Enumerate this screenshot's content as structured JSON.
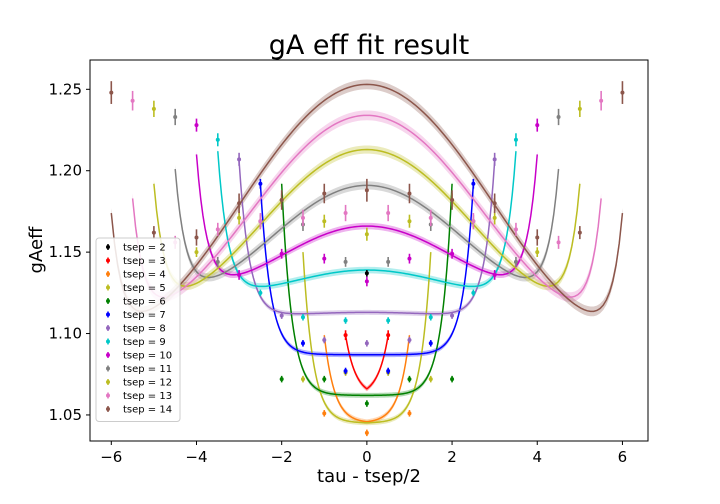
{
  "chart_data": {
    "type": "scatter",
    "title": "gA eff fit result",
    "xlabel": "tau - tsep/2",
    "ylabel": "gAeff",
    "xlim": [
      -6.5,
      6.6
    ],
    "ylim": [
      1.034,
      1.268
    ],
    "xticks": [
      -6,
      -4,
      -2,
      0,
      2,
      4,
      6
    ],
    "xtick_labels": [
      "−6",
      "−4",
      "−2",
      "0",
      "2",
      "4",
      "6"
    ],
    "yticks": [
      1.05,
      1.1,
      1.15,
      1.2,
      1.25
    ],
    "ytick_labels": [
      "1.05",
      "1.10",
      "1.15",
      "1.20",
      "1.25"
    ],
    "legend_position": "lower-left",
    "series": [
      {
        "name": "tsep = 2",
        "tsep": 2,
        "color": "#000000",
        "points": [
          {
            "x": 0,
            "y": 1.137,
            "err": 0.002
          }
        ]
      },
      {
        "name": "tsep = 3",
        "tsep": 3,
        "color": "#ff0000",
        "points": [
          {
            "x": -0.5,
            "y": 1.099,
            "err": 0.003
          },
          {
            "x": 0.5,
            "y": 1.099,
            "err": 0.003
          }
        ]
      },
      {
        "name": "tsep = 4",
        "tsep": 4,
        "color": "#ff7f0e",
        "points": [
          {
            "x": -1,
            "y": 1.051,
            "err": 0.002
          },
          {
            "x": 0,
            "y": 1.039,
            "err": 0.002
          },
          {
            "x": 1,
            "y": 1.051,
            "err": 0.002
          }
        ]
      },
      {
        "name": "tsep = 5",
        "tsep": 5,
        "color": "#bcbd22",
        "points": [
          {
            "x": -1.5,
            "y": 1.072,
            "err": 0.002
          },
          {
            "x": -0.5,
            "y": 1.076,
            "err": 0.002
          },
          {
            "x": 0.5,
            "y": 1.076,
            "err": 0.002
          },
          {
            "x": 1.5,
            "y": 1.072,
            "err": 0.002
          }
        ]
      },
      {
        "name": "tsep = 6",
        "tsep": 6,
        "color": "#008000",
        "points": [
          {
            "x": -2,
            "y": 1.072,
            "err": 0.002
          },
          {
            "x": -1,
            "y": 1.072,
            "err": 0.002
          },
          {
            "x": 0,
            "y": 1.057,
            "err": 0.002
          },
          {
            "x": 1,
            "y": 1.072,
            "err": 0.002
          },
          {
            "x": 2,
            "y": 1.072,
            "err": 0.002
          }
        ]
      },
      {
        "name": "tsep = 7",
        "tsep": 7,
        "color": "#0000ff",
        "points": [
          {
            "x": -2.5,
            "y": 1.192,
            "err": 0.003
          },
          {
            "x": -1.5,
            "y": 1.094,
            "err": 0.002
          },
          {
            "x": -0.5,
            "y": 1.077,
            "err": 0.002
          },
          {
            "x": 0.5,
            "y": 1.077,
            "err": 0.002
          },
          {
            "x": 1.5,
            "y": 1.094,
            "err": 0.002
          },
          {
            "x": 2.5,
            "y": 1.192,
            "err": 0.003
          }
        ]
      },
      {
        "name": "tsep = 8",
        "tsep": 8,
        "color": "#9467bd",
        "points": [
          {
            "x": -3,
            "y": 1.207,
            "err": 0.004
          },
          {
            "x": -2,
            "y": 1.111,
            "err": 0.002
          },
          {
            "x": -1,
            "y": 1.096,
            "err": 0.002
          },
          {
            "x": 0,
            "y": 1.094,
            "err": 0.002
          },
          {
            "x": 1,
            "y": 1.096,
            "err": 0.002
          },
          {
            "x": 2,
            "y": 1.111,
            "err": 0.002
          },
          {
            "x": 3,
            "y": 1.207,
            "err": 0.004
          }
        ]
      },
      {
        "name": "tsep = 9",
        "tsep": 9,
        "color": "#00c8c8",
        "points": [
          {
            "x": -3.5,
            "y": 1.219,
            "err": 0.004
          },
          {
            "x": -2.5,
            "y": 1.125,
            "err": 0.002
          },
          {
            "x": -1.5,
            "y": 1.11,
            "err": 0.002
          },
          {
            "x": -0.5,
            "y": 1.108,
            "err": 0.002
          },
          {
            "x": 0.5,
            "y": 1.108,
            "err": 0.002
          },
          {
            "x": 1.5,
            "y": 1.11,
            "err": 0.002
          },
          {
            "x": 2.5,
            "y": 1.125,
            "err": 0.002
          },
          {
            "x": 3.5,
            "y": 1.219,
            "err": 0.004
          }
        ]
      },
      {
        "name": "tsep = 10",
        "tsep": 10,
        "color": "#c800c8",
        "points": [
          {
            "x": -4,
            "y": 1.228,
            "err": 0.004
          },
          {
            "x": -3,
            "y": 1.136,
            "err": 0.003
          },
          {
            "x": -2,
            "y": 1.149,
            "err": 0.003
          },
          {
            "x": -1,
            "y": 1.146,
            "err": 0.003
          },
          {
            "x": 0,
            "y": 1.132,
            "err": 0.003
          },
          {
            "x": 1,
            "y": 1.146,
            "err": 0.003
          },
          {
            "x": 2,
            "y": 1.149,
            "err": 0.003
          },
          {
            "x": 3,
            "y": 1.136,
            "err": 0.003
          },
          {
            "x": 4,
            "y": 1.228,
            "err": 0.004
          }
        ]
      },
      {
        "name": "tsep = 11",
        "tsep": 11,
        "color": "#808080",
        "points": [
          {
            "x": -4.5,
            "y": 1.233,
            "err": 0.005
          },
          {
            "x": -3.5,
            "y": 1.144,
            "err": 0.003
          },
          {
            "x": -2.5,
            "y": 1.169,
            "err": 0.004
          },
          {
            "x": -1.5,
            "y": 1.167,
            "err": 0.004
          },
          {
            "x": -0.5,
            "y": 1.144,
            "err": 0.003
          },
          {
            "x": 0.5,
            "y": 1.144,
            "err": 0.003
          },
          {
            "x": 1.5,
            "y": 1.167,
            "err": 0.004
          },
          {
            "x": 2.5,
            "y": 1.169,
            "err": 0.004
          },
          {
            "x": 3.5,
            "y": 1.144,
            "err": 0.003
          },
          {
            "x": 4.5,
            "y": 1.233,
            "err": 0.005
          }
        ]
      },
      {
        "name": "tsep = 12",
        "tsep": 12,
        "color": "#bcbd22",
        "points": [
          {
            "x": -5,
            "y": 1.238,
            "err": 0.005
          },
          {
            "x": -4,
            "y": 1.15,
            "err": 0.003
          },
          {
            "x": -3,
            "y": 1.171,
            "err": 0.004
          },
          {
            "x": -2,
            "y": 1.182,
            "err": 0.004
          },
          {
            "x": -1,
            "y": 1.169,
            "err": 0.004
          },
          {
            "x": 0,
            "y": 1.161,
            "err": 0.004
          },
          {
            "x": 1,
            "y": 1.169,
            "err": 0.004
          },
          {
            "x": 2,
            "y": 1.182,
            "err": 0.004
          },
          {
            "x": 3,
            "y": 1.171,
            "err": 0.004
          },
          {
            "x": 4,
            "y": 1.15,
            "err": 0.003
          },
          {
            "x": 5,
            "y": 1.238,
            "err": 0.005
          }
        ]
      },
      {
        "name": "tsep = 13",
        "tsep": 13,
        "color": "#e377c2",
        "points": [
          {
            "x": -5.5,
            "y": 1.243,
            "err": 0.006
          },
          {
            "x": -4.5,
            "y": 1.156,
            "err": 0.004
          },
          {
            "x": -3.5,
            "y": 1.164,
            "err": 0.004
          },
          {
            "x": -2.5,
            "y": 1.169,
            "err": 0.005
          },
          {
            "x": -1.5,
            "y": 1.171,
            "err": 0.005
          },
          {
            "x": -0.5,
            "y": 1.174,
            "err": 0.005
          },
          {
            "x": 0.5,
            "y": 1.174,
            "err": 0.005
          },
          {
            "x": 1.5,
            "y": 1.171,
            "err": 0.005
          },
          {
            "x": 2.5,
            "y": 1.169,
            "err": 0.005
          },
          {
            "x": 3.5,
            "y": 1.164,
            "err": 0.004
          },
          {
            "x": 4.5,
            "y": 1.156,
            "err": 0.004
          },
          {
            "x": 5.5,
            "y": 1.243,
            "err": 0.006
          }
        ]
      },
      {
        "name": "tsep = 14",
        "tsep": 14,
        "color": "#8c564b",
        "points": [
          {
            "x": -6,
            "y": 1.248,
            "err": 0.007
          },
          {
            "x": -5,
            "y": 1.162,
            "err": 0.004
          },
          {
            "x": -4,
            "y": 1.159,
            "err": 0.005
          },
          {
            "x": -3,
            "y": 1.18,
            "err": 0.006
          },
          {
            "x": -2,
            "y": 1.182,
            "err": 0.006
          },
          {
            "x": -1,
            "y": 1.186,
            "err": 0.006
          },
          {
            "x": 0,
            "y": 1.188,
            "err": 0.007
          },
          {
            "x": 1,
            "y": 1.186,
            "err": 0.006
          },
          {
            "x": 2,
            "y": 1.182,
            "err": 0.006
          },
          {
            "x": 3,
            "y": 1.18,
            "err": 0.006
          },
          {
            "x": 4,
            "y": 1.159,
            "err": 0.005
          },
          {
            "x": 5,
            "y": 1.162,
            "err": 0.004
          },
          {
            "x": 6,
            "y": 1.248,
            "err": 0.007
          }
        ]
      }
    ],
    "fit_curves": [
      {
        "tsep": 3,
        "color": "#ff0000",
        "xmin": -0.5,
        "xmax": 0.5,
        "center": 1.062,
        "wing": 0,
        "edge": 1.099,
        "band": 0.0015
      },
      {
        "tsep": 4,
        "color": "#ff7f0e",
        "xmin": -1,
        "xmax": 1,
        "center": 1.045,
        "wing": 0,
        "edge": 1.099,
        "band": 0.0015
      },
      {
        "tsep": 5,
        "color": "#bcbd22",
        "xmin": -1.5,
        "xmax": 1.5,
        "center": 1.045,
        "wing": 0,
        "edge": 1.15,
        "band": 0.0015
      },
      {
        "tsep": 6,
        "color": "#008000",
        "xmin": -2,
        "xmax": 2,
        "center": 1.062,
        "wing": 0,
        "edge": 1.192,
        "band": 0.0015
      },
      {
        "tsep": 7,
        "color": "#0000ff",
        "xmin": -2.5,
        "xmax": 2.5,
        "center": 1.087,
        "wing": 0,
        "edge": 1.192,
        "band": 0.0015
      },
      {
        "tsep": 8,
        "color": "#9467bd",
        "xmin": -3,
        "xmax": 3,
        "center": 1.113,
        "wing": 1.112,
        "edge": 1.207,
        "band": 0.0015
      },
      {
        "tsep": 9,
        "color": "#00c8c8",
        "xmin": -3.5,
        "xmax": 3.5,
        "center": 1.139,
        "wing": 1.132,
        "edge": 1.219,
        "band": 0.002
      },
      {
        "tsep": 10,
        "color": "#c800c8",
        "xmin": -4,
        "xmax": 4,
        "center": 1.166,
        "wing": 1.148,
        "edge": 1.228,
        "band": 0.002
      },
      {
        "tsep": 11,
        "color": "#808080",
        "xmin": -4.5,
        "xmax": 4.5,
        "center": 1.191,
        "wing": 1.159,
        "edge": 1.233,
        "band": 0.0025
      },
      {
        "tsep": 12,
        "color": "#bcbd22",
        "xmin": -5,
        "xmax": 5,
        "center": 1.213,
        "wing": 1.167,
        "edge": 1.238,
        "band": 0.0025
      },
      {
        "tsep": 13,
        "color": "#e377c2",
        "xmin": -5.5,
        "xmax": 5.5,
        "center": 1.234,
        "wing": 1.174,
        "edge": 1.243,
        "band": 0.003
      },
      {
        "tsep": 14,
        "color": "#8c564b",
        "xmin": -6,
        "xmax": 6,
        "center": 1.253,
        "wing": 1.179,
        "edge": 1.248,
        "band": 0.003
      }
    ]
  }
}
